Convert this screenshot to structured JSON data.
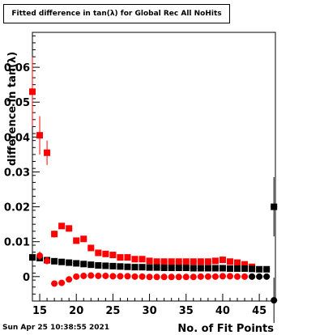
{
  "title": "Fitted difference in tan(λ) for Global Rec All NoHits",
  "timestamp": "Sun Apr 25 10:38:55 2021",
  "chart_data": {
    "type": "scatter",
    "xlabel": "No. of Fit Points",
    "ylabel": "difference in tan(λ)",
    "xlim": [
      14,
      47.2
    ],
    "ylim": [
      -0.007,
      0.07
    ],
    "x_ticks": [
      15,
      20,
      25,
      30,
      35,
      40,
      45
    ],
    "y_ticks": [
      0,
      0.01,
      0.02,
      0.03,
      0.04,
      0.05,
      0.06
    ],
    "y_tick_labels": [
      "0",
      "0.01",
      "0.02",
      "0.03",
      "0.04",
      "0.05",
      "0.06"
    ],
    "grid": false,
    "legend": false,
    "colors": {
      "red": "#ff0000",
      "black": "#000000"
    },
    "series": [
      {
        "marker": "square",
        "color": "#ff0000",
        "x": [
          14,
          15,
          16,
          17,
          18,
          19,
          20,
          21,
          22,
          23,
          24,
          25,
          26,
          27,
          28,
          29,
          30,
          31,
          32,
          33,
          34,
          35,
          36,
          37,
          38,
          39,
          40,
          41,
          42,
          43,
          44
        ],
        "y": [
          0.053,
          0.0405,
          0.0355,
          0.0122,
          0.0145,
          0.0138,
          0.0103,
          0.0108,
          0.0082,
          0.0068,
          0.0065,
          0.0062,
          0.0055,
          0.0055,
          0.005,
          0.005,
          0.0045,
          0.0043,
          0.0043,
          0.0043,
          0.0043,
          0.0043,
          0.0043,
          0.0043,
          0.0043,
          0.0045,
          0.0048,
          0.0043,
          0.004,
          0.0035,
          0.0028
        ],
        "err": [
          0.01,
          0.0055,
          0.0035,
          0.001,
          0.0008,
          0.0007,
          0.0007,
          0.0006,
          0.0005,
          0.0005,
          0.0004,
          0.0004,
          0.0004,
          0.0004,
          0.0004,
          0.0004,
          0.0004,
          0.0004,
          0.0004,
          0.0004,
          0.0004,
          0.0004,
          0.0004,
          0.0004,
          0.0004,
          0.0004,
          0.0004,
          0.0004,
          0.0004,
          0.0004,
          0.0004
        ]
      },
      {
        "marker": "square",
        "color": "#000000",
        "x": [
          14,
          15,
          16,
          17,
          18,
          19,
          20,
          21,
          22,
          23,
          24,
          25,
          26,
          27,
          28,
          29,
          30,
          31,
          32,
          33,
          34,
          35,
          36,
          37,
          38,
          39,
          40,
          41,
          42,
          43,
          44,
          45,
          46,
          47
        ],
        "y": [
          0.0055,
          0.0053,
          0.0047,
          0.0044,
          0.0042,
          0.004,
          0.0038,
          0.0036,
          0.0034,
          0.0032,
          0.0031,
          0.003,
          0.0029,
          0.0028,
          0.0027,
          0.0027,
          0.0026,
          0.0026,
          0.0025,
          0.0025,
          0.0025,
          0.0025,
          0.0024,
          0.0024,
          0.0024,
          0.0024,
          0.0024,
          0.0023,
          0.0023,
          0.0023,
          0.0022,
          0.0021,
          0.0021,
          0.02
        ],
        "err": [
          0.0002,
          0.0002,
          0.0002,
          0.0002,
          0.0002,
          0.0002,
          0.0002,
          0.0002,
          0.0002,
          0.0002,
          0.0002,
          0.0002,
          0.0002,
          0.0002,
          0.0002,
          0.0002,
          0.0002,
          0.0002,
          0.0002,
          0.0002,
          0.0002,
          0.0002,
          0.0002,
          0.0002,
          0.0002,
          0.0002,
          0.0002,
          0.0002,
          0.0002,
          0.0002,
          0.0003,
          0.0003,
          0.0005,
          0.0085
        ]
      },
      {
        "marker": "circle",
        "color": "#ff0000",
        "x": [
          15,
          16,
          17,
          18,
          19,
          20,
          21,
          22,
          23,
          24,
          25,
          26,
          27,
          28,
          29,
          30,
          31,
          32,
          33,
          34,
          35,
          36,
          37,
          38,
          39,
          40,
          41,
          42,
          43,
          44
        ],
        "y": [
          0.006,
          0.0045,
          -0.002,
          -0.0018,
          -0.0008,
          0.0,
          0.0002,
          0.0003,
          0.0002,
          0.0002,
          0.0001,
          0.0001,
          0.0001,
          0.0,
          0.0,
          -0.0001,
          -0.0001,
          -0.0001,
          -0.0001,
          -0.0001,
          -0.0001,
          -0.0001,
          0.0,
          0.0,
          0.0,
          0.0001,
          0.0001,
          0.0,
          0.0,
          0.0
        ],
        "err": [
          0.0012,
          0.001,
          0.0006,
          0.0005,
          0.0004,
          0.0003,
          0.0003,
          0.0003,
          0.0003,
          0.0003,
          0.0003,
          0.0003,
          0.0003,
          0.0003,
          0.0003,
          0.0003,
          0.0003,
          0.0003,
          0.0003,
          0.0003,
          0.0003,
          0.0003,
          0.0003,
          0.0003,
          0.0003,
          0.0003,
          0.0003,
          0.0003,
          0.0003,
          0.0003
        ]
      },
      {
        "marker": "circle",
        "color": "#000000",
        "x": [
          44,
          45,
          46,
          47
        ],
        "y": [
          0.0,
          0.0,
          0.0,
          -0.0068
        ],
        "err": [
          0.0003,
          0.0003,
          0.0006,
          0.0065
        ]
      }
    ]
  }
}
